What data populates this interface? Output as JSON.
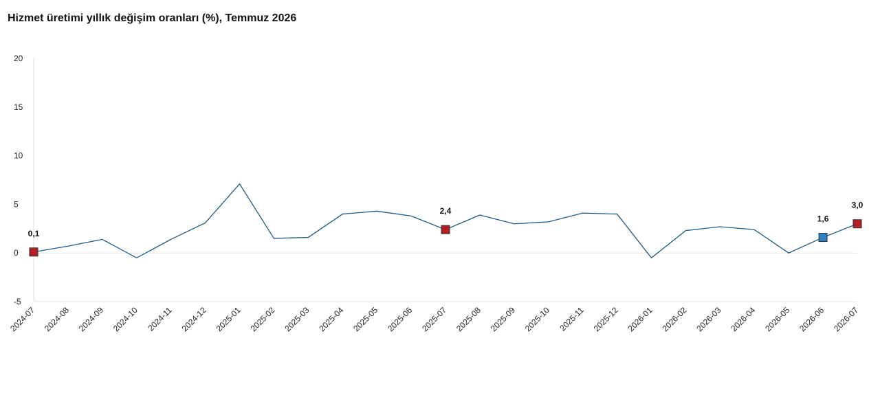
{
  "chart_data": {
    "type": "line",
    "title": "Hizmet üretimi yıllık değişim oranları (%), Temmuz 2026",
    "xlabel": "",
    "ylabel": "",
    "ylim": [
      -5,
      20
    ],
    "yticks": [
      "20",
      "15",
      "10",
      "5",
      "0",
      "-5"
    ],
    "grid": false,
    "legend": "none",
    "categories": [
      "2024-07",
      "2024-08",
      "2024-09",
      "2024-10",
      "2024-11",
      "2024-12",
      "2025-01",
      "2025-02",
      "2025-03",
      "2025-04",
      "2025-05",
      "2025-06",
      "2025-07",
      "2025-08",
      "2025-09",
      "2025-10",
      "2025-11",
      "2025-12",
      "2026-01",
      "2026-02",
      "2026-03",
      "2026-04",
      "2026-05",
      "2026-06",
      "2026-07"
    ],
    "series": [
      {
        "values": [
          0.1,
          0.7,
          1.4,
          -0.5,
          1.4,
          3.1,
          7.1,
          1.5,
          1.6,
          4.0,
          4.3,
          3.8,
          2.4,
          3.9,
          3.0,
          3.2,
          4.1,
          4.0,
          -0.5,
          2.3,
          2.7,
          2.4,
          0.0,
          1.6,
          3.0
        ],
        "color": "#1f5a87"
      }
    ],
    "highlights": [
      {
        "index": 0,
        "label": "0,1",
        "color": "#b21f24"
      },
      {
        "index": 12,
        "label": "2,4",
        "color": "#b21f24"
      },
      {
        "index": 23,
        "label": "1,6",
        "color": "#2e7fc0"
      },
      {
        "index": 24,
        "label": "3,0",
        "color": "#b21f24"
      }
    ]
  }
}
